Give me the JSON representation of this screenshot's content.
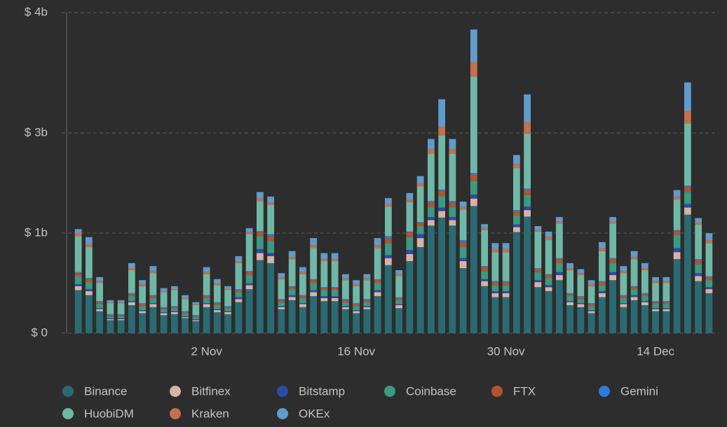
{
  "chart_data": {
    "type": "stacked_bar",
    "categories": [
      null,
      null,
      null,
      null,
      null,
      null,
      null,
      null,
      null,
      null,
      null,
      null,
      "2 Nov",
      null,
      null,
      null,
      null,
      null,
      null,
      null,
      null,
      null,
      null,
      null,
      null,
      null,
      "16 Nov",
      null,
      null,
      null,
      null,
      null,
      null,
      null,
      null,
      null,
      null,
      null,
      null,
      null,
      "30 Nov",
      null,
      null,
      null,
      null,
      null,
      null,
      null,
      null,
      null,
      null,
      null,
      null,
      null,
      "14 Dec",
      null,
      null,
      null,
      null,
      null
    ],
    "ylim": [
      0,
      4
    ],
    "yticks": [
      {
        "value": 0,
        "label": "$ 0"
      },
      {
        "value": 1,
        "label": "$ 1b"
      },
      {
        "value": 3,
        "label": "$ 3b"
      },
      {
        "value": 4,
        "label": "$ 4b"
      }
    ],
    "grid": true,
    "series": [
      {
        "name": "Binance",
        "color": "#2a6b73",
        "values": [
          0.43,
          0.38,
          0.22,
          0.13,
          0.13,
          0.28,
          0.2,
          0.26,
          0.18,
          0.19,
          0.15,
          0.12,
          0.26,
          0.21,
          0.19,
          0.31,
          0.44,
          0.73,
          0.7,
          0.24,
          0.33,
          0.26,
          0.37,
          0.32,
          0.32,
          0.24,
          0.2,
          0.24,
          0.37,
          0.68,
          0.25,
          0.72,
          0.86,
          1.15,
          1.31,
          1.15,
          0.65,
          1.54,
          0.47,
          0.36,
          0.36,
          1.02,
          1.33,
          0.46,
          0.42,
          0.53,
          0.28,
          0.26,
          0.2,
          0.36,
          0.53,
          0.26,
          0.33,
          0.28,
          0.22,
          0.22,
          0.74,
          1.37,
          0.52,
          0.4
        ]
      },
      {
        "name": "Bitfinex",
        "color": "#d9b2a5",
        "values": [
          0.04,
          0.04,
          0.02,
          0.01,
          0.01,
          0.03,
          0.02,
          0.03,
          0.02,
          0.02,
          0.01,
          0.01,
          0.03,
          0.02,
          0.02,
          0.03,
          0.04,
          0.07,
          0.07,
          0.02,
          0.03,
          0.03,
          0.04,
          0.03,
          0.03,
          0.02,
          0.02,
          0.02,
          0.04,
          0.07,
          0.03,
          0.07,
          0.09,
          0.11,
          0.13,
          0.11,
          0.07,
          0.15,
          0.05,
          0.04,
          0.04,
          0.1,
          0.13,
          0.05,
          0.04,
          0.05,
          0.03,
          0.03,
          0.02,
          0.04,
          0.05,
          0.03,
          0.03,
          0.03,
          0.02,
          0.02,
          0.07,
          0.14,
          0.05,
          0.04
        ]
      },
      {
        "name": "Bitstamp",
        "color": "#2b4aa8",
        "values": [
          0.02,
          0.02,
          0.01,
          0.01,
          0.01,
          0.01,
          0.01,
          0.01,
          0.01,
          0.01,
          0.01,
          0.01,
          0.01,
          0.01,
          0.01,
          0.02,
          0.02,
          0.04,
          0.03,
          0.01,
          0.02,
          0.01,
          0.02,
          0.02,
          0.02,
          0.01,
          0.01,
          0.01,
          0.02,
          0.03,
          0.01,
          0.04,
          0.04,
          0.06,
          0.07,
          0.06,
          0.03,
          0.08,
          0.02,
          0.02,
          0.02,
          0.05,
          0.07,
          0.02,
          0.02,
          0.03,
          0.01,
          0.01,
          0.01,
          0.02,
          0.03,
          0.01,
          0.02,
          0.01,
          0.01,
          0.01,
          0.04,
          0.07,
          0.03,
          0.02
        ]
      },
      {
        "name": "Coinbase",
        "color": "#3a9a82",
        "values": [
          0.08,
          0.07,
          0.04,
          0.02,
          0.02,
          0.05,
          0.04,
          0.05,
          0.03,
          0.03,
          0.03,
          0.02,
          0.05,
          0.04,
          0.03,
          0.05,
          0.08,
          0.13,
          0.12,
          0.04,
          0.06,
          0.05,
          0.07,
          0.06,
          0.06,
          0.04,
          0.04,
          0.04,
          0.07,
          0.12,
          0.04,
          0.13,
          0.15,
          0.2,
          0.23,
          0.2,
          0.11,
          0.27,
          0.08,
          0.06,
          0.06,
          0.18,
          0.23,
          0.08,
          0.07,
          0.09,
          0.05,
          0.04,
          0.04,
          0.06,
          0.09,
          0.05,
          0.06,
          0.05,
          0.04,
          0.04,
          0.13,
          0.24,
          0.09,
          0.07
        ]
      },
      {
        "name": "FTX",
        "color": "#b5532f",
        "values": [
          0.03,
          0.03,
          0.02,
          0.01,
          0.01,
          0.02,
          0.02,
          0.02,
          0.01,
          0.01,
          0.01,
          0.01,
          0.02,
          0.02,
          0.01,
          0.02,
          0.03,
          0.05,
          0.05,
          0.02,
          0.02,
          0.02,
          0.03,
          0.02,
          0.02,
          0.02,
          0.02,
          0.02,
          0.03,
          0.05,
          0.02,
          0.05,
          0.06,
          0.09,
          0.1,
          0.09,
          0.05,
          0.12,
          0.04,
          0.03,
          0.03,
          0.08,
          0.1,
          0.03,
          0.03,
          0.04,
          0.02,
          0.02,
          0.02,
          0.03,
          0.04,
          0.02,
          0.02,
          0.02,
          0.02,
          0.02,
          0.06,
          0.1,
          0.04,
          0.03
        ]
      },
      {
        "name": "Gemini",
        "color": "#2f7bd6",
        "values": [
          0.01,
          0.01,
          0.01,
          0.01,
          0.01,
          0.01,
          0.01,
          0.01,
          0.01,
          0.01,
          0.01,
          0.01,
          0.01,
          0.01,
          0.01,
          0.01,
          0.01,
          0.02,
          0.02,
          0.01,
          0.01,
          0.01,
          0.01,
          0.01,
          0.01,
          0.01,
          0.01,
          0.01,
          0.01,
          0.02,
          0.01,
          0.02,
          0.02,
          0.03,
          0.03,
          0.03,
          0.02,
          0.04,
          0.01,
          0.01,
          0.01,
          0.03,
          0.03,
          0.01,
          0.01,
          0.01,
          0.01,
          0.01,
          0.01,
          0.01,
          0.01,
          0.01,
          0.01,
          0.01,
          0.01,
          0.01,
          0.02,
          0.03,
          0.01,
          0.01
        ]
      },
      {
        "name": "HuobiDM",
        "color": "#6fb8a6",
        "values": [
          0.36,
          0.31,
          0.18,
          0.11,
          0.11,
          0.23,
          0.17,
          0.22,
          0.15,
          0.16,
          0.12,
          0.1,
          0.21,
          0.17,
          0.16,
          0.26,
          0.37,
          0.6,
          0.57,
          0.2,
          0.27,
          0.21,
          0.31,
          0.26,
          0.26,
          0.19,
          0.17,
          0.19,
          0.31,
          0.56,
          0.21,
          0.59,
          0.71,
          0.95,
          1.08,
          0.95,
          0.54,
          1.27,
          0.39,
          0.29,
          0.29,
          0.84,
          1.1,
          0.38,
          0.34,
          0.44,
          0.23,
          0.21,
          0.17,
          0.3,
          0.44,
          0.22,
          0.27,
          0.23,
          0.18,
          0.18,
          0.61,
          1.13,
          0.43,
          0.33
        ]
      },
      {
        "name": "Kraken",
        "color": "#c4704e",
        "values": [
          0.03,
          0.03,
          0.02,
          0.01,
          0.01,
          0.02,
          0.02,
          0.02,
          0.01,
          0.01,
          0.01,
          0.01,
          0.02,
          0.02,
          0.01,
          0.02,
          0.03,
          0.05,
          0.05,
          0.02,
          0.02,
          0.02,
          0.03,
          0.02,
          0.02,
          0.02,
          0.02,
          0.02,
          0.03,
          0.05,
          0.02,
          0.05,
          0.06,
          0.09,
          0.1,
          0.09,
          0.05,
          0.12,
          0.04,
          0.03,
          0.03,
          0.08,
          0.1,
          0.03,
          0.03,
          0.04,
          0.02,
          0.02,
          0.02,
          0.03,
          0.04,
          0.02,
          0.02,
          0.02,
          0.02,
          0.02,
          0.06,
          0.1,
          0.04,
          0.03
        ]
      },
      {
        "name": "OKEx",
        "color": "#5f9ccc",
        "values": [
          0.08,
          0.07,
          0.04,
          0.02,
          0.02,
          0.05,
          0.04,
          0.05,
          0.03,
          0.03,
          0.03,
          0.02,
          0.05,
          0.04,
          0.03,
          0.05,
          0.08,
          0.13,
          0.12,
          0.04,
          0.06,
          0.05,
          0.07,
          0.06,
          0.06,
          0.04,
          0.04,
          0.04,
          0.07,
          0.12,
          0.04,
          0.13,
          0.15,
          0.2,
          0.23,
          0.2,
          0.11,
          0.27,
          0.08,
          0.06,
          0.06,
          0.18,
          0.23,
          0.08,
          0.07,
          0.09,
          0.05,
          0.04,
          0.04,
          0.06,
          0.09,
          0.05,
          0.06,
          0.05,
          0.04,
          0.04,
          0.13,
          0.24,
          0.09,
          0.07
        ]
      }
    ]
  }
}
